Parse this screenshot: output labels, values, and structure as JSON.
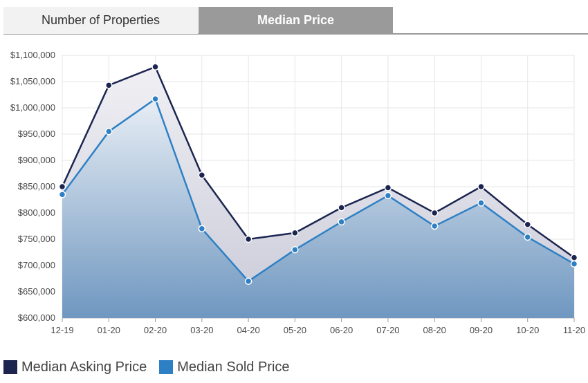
{
  "tabs": [
    {
      "label": "Number of Properties",
      "active": false
    },
    {
      "label": "Median Price",
      "active": true
    }
  ],
  "colors": {
    "asking": "#1b2550",
    "sold": "#2e80c4",
    "tab_active_bg": "#9a9a9a",
    "tab_inactive_bg": "#f2f2f2"
  },
  "chart_data": {
    "type": "area",
    "categories": [
      "12-19",
      "01-20",
      "02-20",
      "03-20",
      "04-20",
      "05-20",
      "06-20",
      "07-20",
      "08-20",
      "09-20",
      "10-20",
      "11-20"
    ],
    "series": [
      {
        "name": "Median Asking Price",
        "values": [
          850000,
          1043000,
          1078000,
          872000,
          750000,
          762000,
          810000,
          848000,
          800000,
          850000,
          778000,
          715000
        ]
      },
      {
        "name": "Median Sold Price",
        "values": [
          835000,
          955000,
          1017000,
          770000,
          670000,
          730000,
          783000,
          833000,
          775000,
          819000,
          754000,
          703000
        ]
      }
    ],
    "ylim": [
      600000,
      1100000
    ],
    "yticks": [
      600000,
      650000,
      700000,
      750000,
      800000,
      850000,
      900000,
      950000,
      1000000,
      1050000,
      1100000
    ],
    "ytick_labels": [
      "$600,000",
      "$650,000",
      "$700,000",
      "$750,000",
      "$800,000",
      "$850,000",
      "$900,000",
      "$950,000",
      "$1,000,000",
      "$1,050,000",
      "$1,100,000"
    ],
    "grid": true,
    "legend_position": "bottom-left"
  },
  "legend": {
    "asking_label": "Median Asking Price",
    "sold_label": "Median Sold Price"
  }
}
